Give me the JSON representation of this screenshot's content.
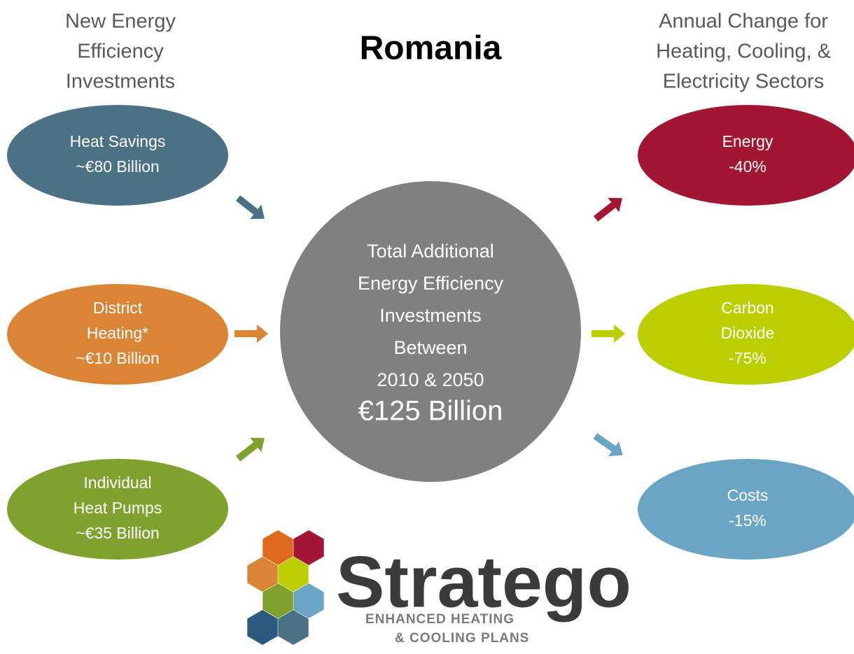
{
  "header": {
    "title": "Romania",
    "left_heading": [
      "New Energy",
      "Efficiency",
      "Investments"
    ],
    "right_heading": [
      "Annual Change for",
      "Heating, Cooling, &",
      "Electricity Sectors"
    ]
  },
  "inputs": [
    {
      "lines": [
        "Heat Savings",
        "~€80 Billion"
      ]
    },
    {
      "lines": [
        "District",
        "Heating*",
        "~€10 Billion"
      ]
    },
    {
      "lines": [
        "Individual",
        "Heat Pumps",
        "~€35 Billion"
      ]
    }
  ],
  "center": {
    "lines": [
      "Total Additional",
      "Energy Efficiency",
      "Investments",
      "Between",
      "2010 & 2050"
    ],
    "total": "€125 Billion"
  },
  "outputs": [
    {
      "lines": [
        "Energy",
        "-40%"
      ]
    },
    {
      "lines": [
        "Carbon",
        "Dioxide",
        "-75%"
      ]
    },
    {
      "lines": [
        "Costs",
        "-15%"
      ]
    }
  ],
  "logo": {
    "name": "Stratego",
    "tagline": [
      "ENHANCED HEATING",
      "& COOLING PLANS"
    ]
  }
}
